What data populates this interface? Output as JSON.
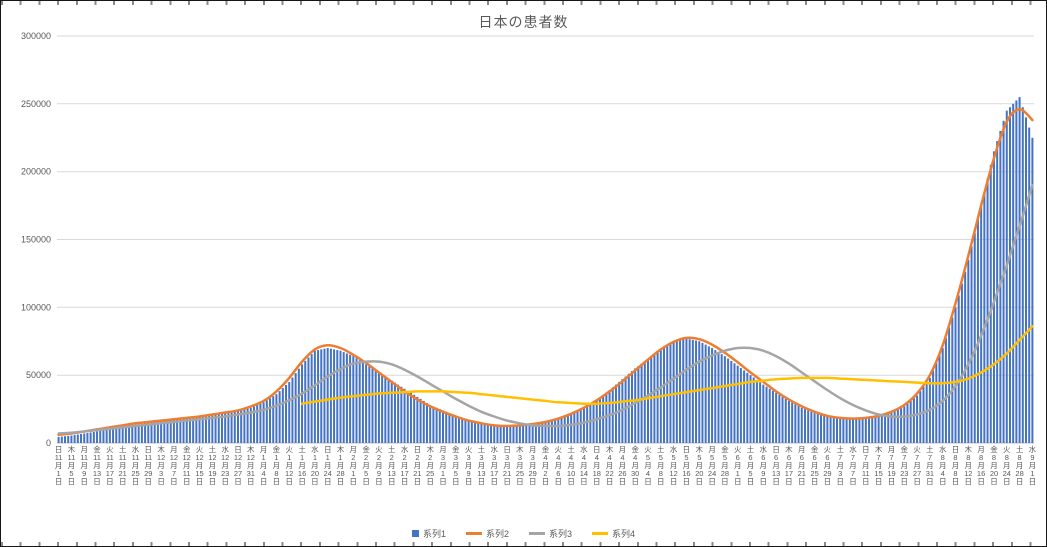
{
  "chart_data": {
    "type": "bar",
    "title": "日本の患者数",
    "ylim": [
      0,
      300000
    ],
    "y_ticks": [
      0,
      50000,
      100000,
      150000,
      200000,
      250000,
      300000
    ],
    "grid": true,
    "legend_position": "bottom",
    "x_label_interval_days": 4,
    "categories": [
      {
        "dow": "日",
        "m": "11",
        "d": "1"
      },
      {
        "dow": "木",
        "m": "11",
        "d": "5"
      },
      {
        "dow": "月",
        "m": "11",
        "d": "9"
      },
      {
        "dow": "金",
        "m": "11",
        "d": "13"
      },
      {
        "dow": "火",
        "m": "11",
        "d": "17"
      },
      {
        "dow": "土",
        "m": "11",
        "d": "21"
      },
      {
        "dow": "水",
        "m": "11",
        "d": "25"
      },
      {
        "dow": "日",
        "m": "11",
        "d": "29"
      },
      {
        "dow": "木",
        "m": "12",
        "d": "3"
      },
      {
        "dow": "月",
        "m": "12",
        "d": "7"
      },
      {
        "dow": "金",
        "m": "12",
        "d": "11"
      },
      {
        "dow": "火",
        "m": "12",
        "d": "15"
      },
      {
        "dow": "土",
        "m": "12",
        "d": "19"
      },
      {
        "dow": "水",
        "m": "12",
        "d": "23"
      },
      {
        "dow": "日",
        "m": "12",
        "d": "27"
      },
      {
        "dow": "木",
        "m": "12",
        "d": "31"
      },
      {
        "dow": "月",
        "m": "1",
        "d": "4"
      },
      {
        "dow": "金",
        "m": "1",
        "d": "8"
      },
      {
        "dow": "火",
        "m": "1",
        "d": "12"
      },
      {
        "dow": "土",
        "m": "1",
        "d": "16"
      },
      {
        "dow": "水",
        "m": "1",
        "d": "20"
      },
      {
        "dow": "日",
        "m": "1",
        "d": "24"
      },
      {
        "dow": "木",
        "m": "1",
        "d": "28"
      },
      {
        "dow": "月",
        "m": "2",
        "d": "1"
      },
      {
        "dow": "金",
        "m": "2",
        "d": "5"
      },
      {
        "dow": "火",
        "m": "2",
        "d": "9"
      },
      {
        "dow": "土",
        "m": "2",
        "d": "13"
      },
      {
        "dow": "水",
        "m": "2",
        "d": "17"
      },
      {
        "dow": "日",
        "m": "2",
        "d": "21"
      },
      {
        "dow": "木",
        "m": "2",
        "d": "25"
      },
      {
        "dow": "月",
        "m": "3",
        "d": "1"
      },
      {
        "dow": "金",
        "m": "3",
        "d": "5"
      },
      {
        "dow": "火",
        "m": "3",
        "d": "9"
      },
      {
        "dow": "土",
        "m": "3",
        "d": "13"
      },
      {
        "dow": "水",
        "m": "3",
        "d": "17"
      },
      {
        "dow": "日",
        "m": "3",
        "d": "21"
      },
      {
        "dow": "木",
        "m": "3",
        "d": "25"
      },
      {
        "dow": "月",
        "m": "3",
        "d": "29"
      },
      {
        "dow": "金",
        "m": "4",
        "d": "2"
      },
      {
        "dow": "火",
        "m": "4",
        "d": "6"
      },
      {
        "dow": "土",
        "m": "4",
        "d": "10"
      },
      {
        "dow": "水",
        "m": "4",
        "d": "14"
      },
      {
        "dow": "日",
        "m": "4",
        "d": "18"
      },
      {
        "dow": "木",
        "m": "4",
        "d": "22"
      },
      {
        "dow": "月",
        "m": "4",
        "d": "26"
      },
      {
        "dow": "金",
        "m": "4",
        "d": "30"
      },
      {
        "dow": "火",
        "m": "5",
        "d": "4"
      },
      {
        "dow": "土",
        "m": "5",
        "d": "8"
      },
      {
        "dow": "水",
        "m": "5",
        "d": "12"
      },
      {
        "dow": "日",
        "m": "5",
        "d": "16"
      },
      {
        "dow": "木",
        "m": "5",
        "d": "20"
      },
      {
        "dow": "月",
        "m": "5",
        "d": "24"
      },
      {
        "dow": "金",
        "m": "5",
        "d": "28"
      },
      {
        "dow": "火",
        "m": "6",
        "d": "1"
      },
      {
        "dow": "土",
        "m": "6",
        "d": "5"
      },
      {
        "dow": "水",
        "m": "6",
        "d": "9"
      },
      {
        "dow": "日",
        "m": "6",
        "d": "13"
      },
      {
        "dow": "木",
        "m": "6",
        "d": "17"
      },
      {
        "dow": "月",
        "m": "6",
        "d": "21"
      },
      {
        "dow": "金",
        "m": "6",
        "d": "25"
      },
      {
        "dow": "火",
        "m": "6",
        "d": "29"
      },
      {
        "dow": "土",
        "m": "7",
        "d": "3"
      },
      {
        "dow": "水",
        "m": "7",
        "d": "7"
      },
      {
        "dow": "日",
        "m": "7",
        "d": "11"
      },
      {
        "dow": "木",
        "m": "7",
        "d": "15"
      },
      {
        "dow": "月",
        "m": "7",
        "d": "19"
      },
      {
        "dow": "金",
        "m": "7",
        "d": "23"
      },
      {
        "dow": "火",
        "m": "7",
        "d": "27"
      },
      {
        "dow": "土",
        "m": "7",
        "d": "31"
      },
      {
        "dow": "水",
        "m": "8",
        "d": "4"
      },
      {
        "dow": "日",
        "m": "8",
        "d": "8"
      },
      {
        "dow": "木",
        "m": "8",
        "d": "12"
      },
      {
        "dow": "月",
        "m": "8",
        "d": "16"
      },
      {
        "dow": "金",
        "m": "8",
        "d": "20"
      },
      {
        "dow": "火",
        "m": "8",
        "d": "24"
      },
      {
        "dow": "土",
        "m": "8",
        "d": "28"
      },
      {
        "dow": "水",
        "m": "9",
        "d": "1"
      }
    ],
    "series": [
      {
        "name": "系列1",
        "type": "bar",
        "color": "#4472C4",
        "values": [
          4500,
          5500,
          7000,
          8500,
          10000,
          12000,
          13500,
          15000,
          16000,
          17000,
          18000,
          19000,
          20500,
          22000,
          23500,
          26000,
          30000,
          36000,
          45000,
          58000,
          68000,
          70000,
          68000,
          64000,
          58000,
          52000,
          46000,
          40000,
          34000,
          28000,
          24000,
          20000,
          17000,
          14000,
          12500,
          12000,
          12500,
          13500,
          15000,
          17500,
          21000,
          26000,
          32000,
          39000,
          47000,
          55000,
          62000,
          69000,
          75000,
          77000,
          75000,
          70000,
          64000,
          57000,
          50000,
          43000,
          37000,
          31000,
          26000,
          22000,
          19500,
          18000,
          17500,
          18000,
          19500,
          22000,
          27000,
          35000,
          48000,
          70000,
          100000,
          135000,
          175000,
          215000,
          245000,
          255000,
          225000
        ]
      },
      {
        "name": "系列2",
        "type": "line",
        "color": "#ED7D31",
        "values": [
          6000,
          7000,
          8500,
          10000,
          11500,
          13000,
          14500,
          15500,
          16500,
          17500,
          18500,
          19500,
          21000,
          22500,
          24000,
          27000,
          31000,
          38000,
          48000,
          60000,
          69000,
          72000,
          70000,
          65000,
          59000,
          52000,
          45000,
          38000,
          32000,
          27000,
          23000,
          19500,
          16500,
          14500,
          13000,
          12500,
          13000,
          14000,
          15500,
          18000,
          21500,
          26000,
          31500,
          38000,
          45500,
          53500,
          61500,
          69000,
          74500,
          77500,
          76500,
          72500,
          66500,
          59500,
          52000,
          45000,
          38000,
          32000,
          27000,
          23000,
          20000,
          18500,
          18000,
          18500,
          20000,
          23000,
          28000,
          36500,
          50000,
          72000,
          103000,
          138000,
          175000,
          210000,
          237000,
          246000,
          238000
        ]
      },
      {
        "name": "系列3",
        "type": "line",
        "color": "#A5A5A5",
        "values": [
          7000,
          7500,
          8500,
          9500,
          10500,
          11500,
          12500,
          13500,
          14500,
          15500,
          16500,
          17500,
          18500,
          19500,
          21000,
          22500,
          24500,
          27500,
          31500,
          36500,
          42500,
          49000,
          54500,
          58500,
          60000,
          60000,
          58000,
          54000,
          49000,
          43500,
          38000,
          32500,
          27500,
          23000,
          19500,
          16500,
          14500,
          13000,
          12500,
          12500,
          13500,
          15000,
          17500,
          20500,
          24500,
          29500,
          35000,
          41000,
          47500,
          54000,
          60000,
          64500,
          68000,
          70000,
          70000,
          68000,
          64000,
          58500,
          52000,
          45500,
          39000,
          33000,
          28000,
          24000,
          21000,
          19500,
          19500,
          21000,
          24500,
          31000,
          42000,
          58000,
          79000,
          104000,
          131000,
          160000,
          190000
        ]
      },
      {
        "name": "系列4",
        "type": "line",
        "color": "#FFC000",
        "values": [
          null,
          null,
          null,
          null,
          null,
          null,
          null,
          null,
          null,
          null,
          null,
          null,
          null,
          null,
          null,
          null,
          null,
          null,
          null,
          29000,
          30500,
          32000,
          33500,
          34500,
          35500,
          36500,
          37000,
          37500,
          38000,
          38000,
          38000,
          37500,
          37000,
          36000,
          35000,
          34000,
          33000,
          32000,
          31000,
          30000,
          29500,
          29000,
          29000,
          29500,
          30500,
          31500,
          33000,
          34500,
          36000,
          37500,
          39000,
          40500,
          42000,
          43500,
          45000,
          46000,
          47000,
          47500,
          48000,
          48000,
          48000,
          47500,
          47000,
          46500,
          46000,
          45500,
          45000,
          44500,
          44000,
          44000,
          45000,
          47500,
          52000,
          58000,
          66000,
          76000,
          86000
        ]
      }
    ]
  }
}
